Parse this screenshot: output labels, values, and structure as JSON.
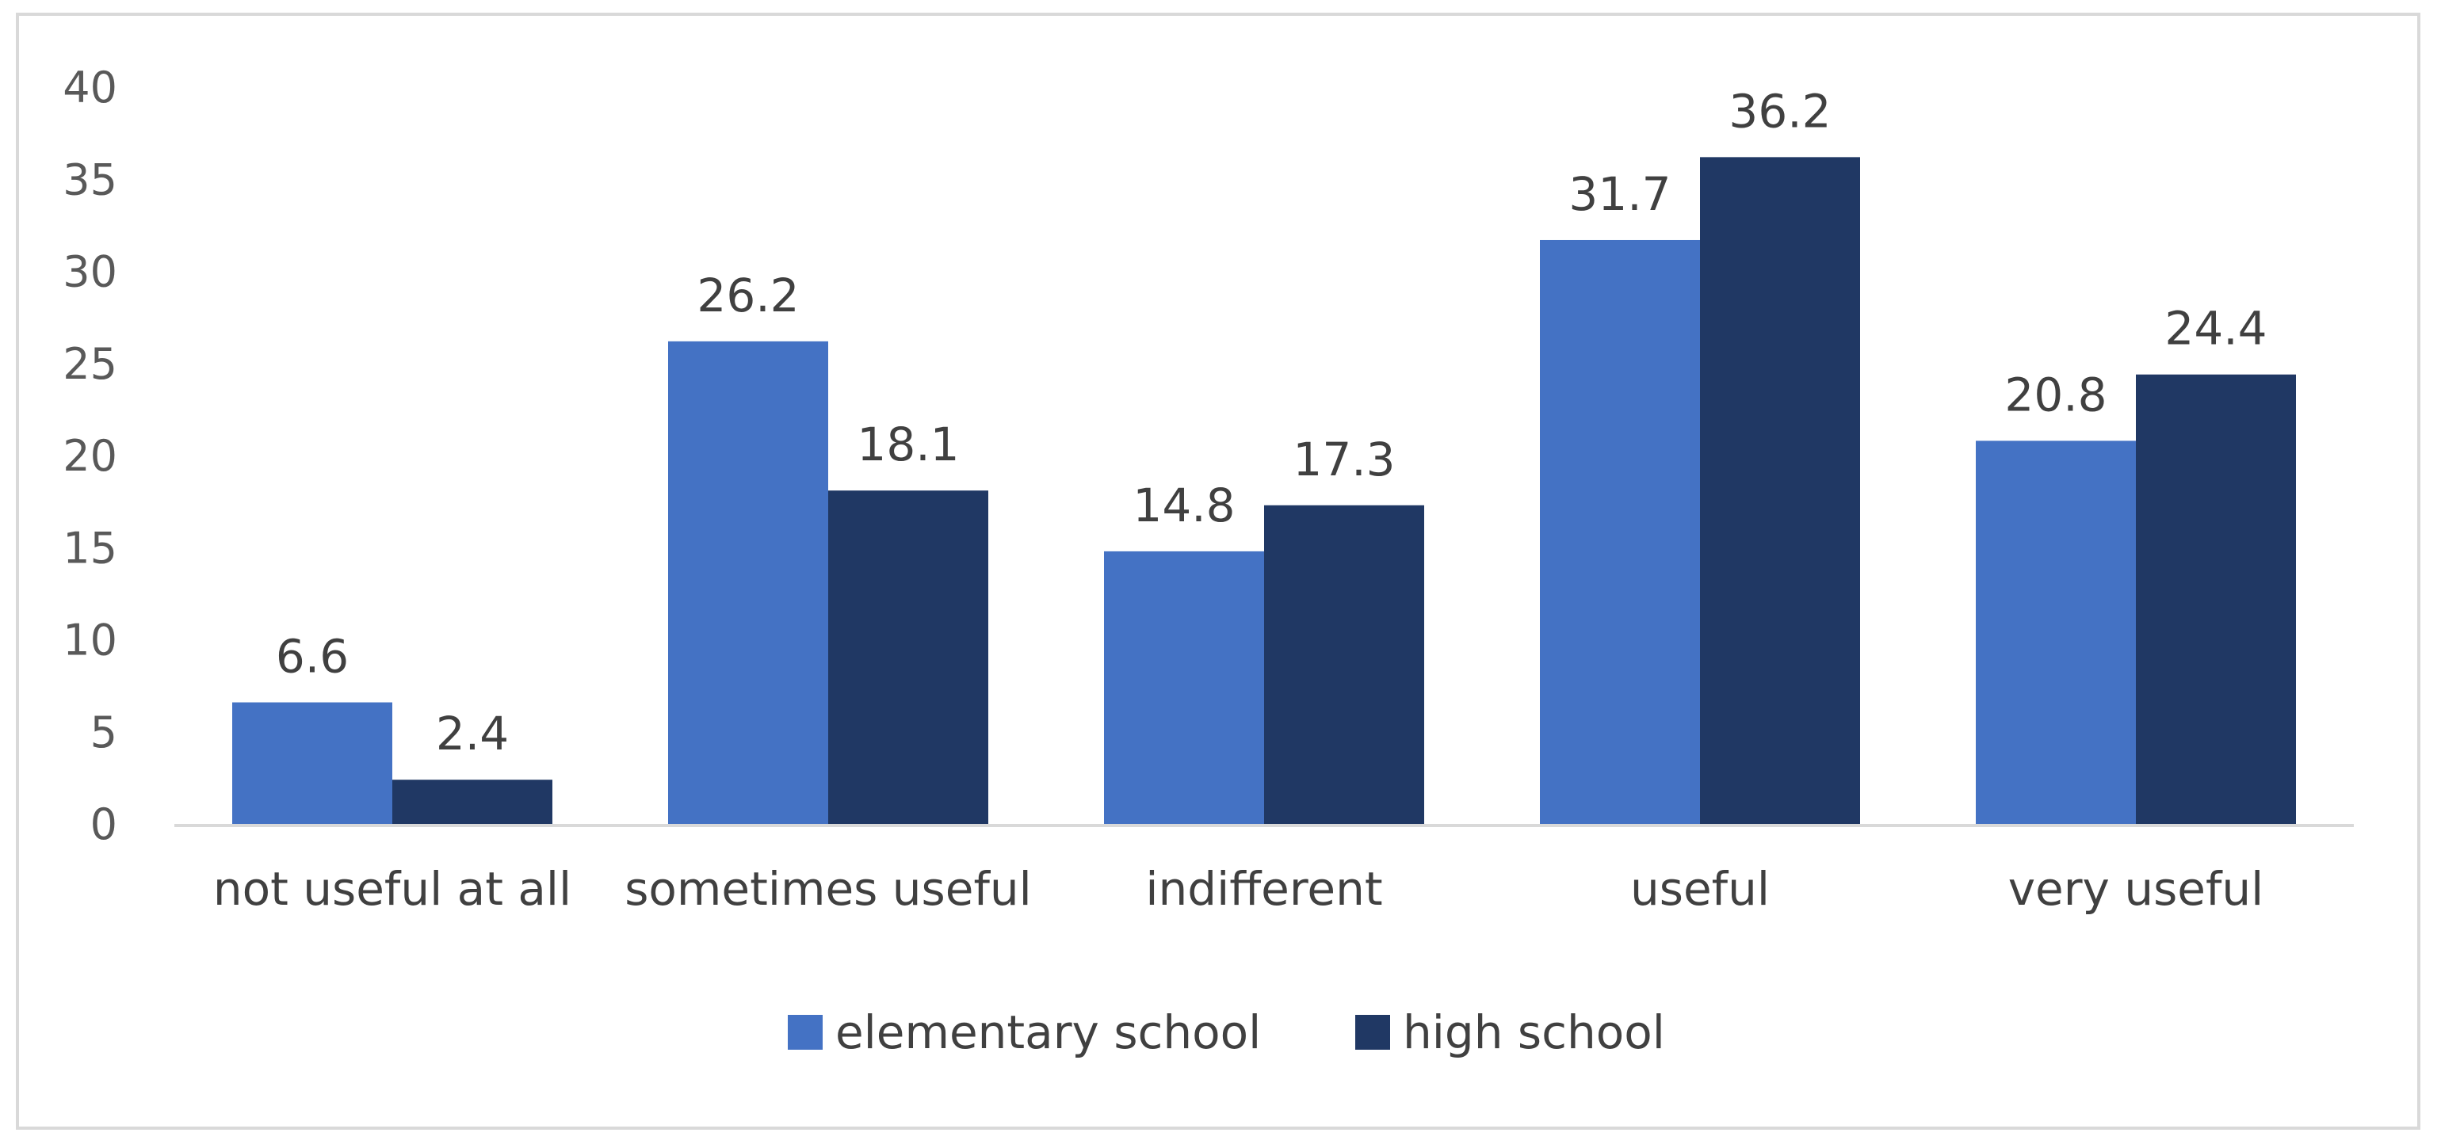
{
  "chart_data": {
    "type": "bar",
    "title": "",
    "xlabel": "",
    "ylabel": "",
    "categories": [
      "not useful at all",
      "sometimes useful",
      "indifferent",
      "useful",
      "very useful"
    ],
    "series": [
      {
        "name": "elementary school",
        "color": "#4472c4",
        "values": [
          6.6,
          26.2,
          14.8,
          31.7,
          20.8
        ]
      },
      {
        "name": "high school",
        "color": "#203864",
        "values": [
          2.4,
          18.1,
          17.3,
          36.2,
          24.4
        ]
      }
    ],
    "ylim": [
      0,
      40
    ],
    "yticks": [
      0,
      5,
      10,
      15,
      20,
      25,
      30,
      35,
      40
    ],
    "grid": false,
    "legend_position": "bottom"
  }
}
